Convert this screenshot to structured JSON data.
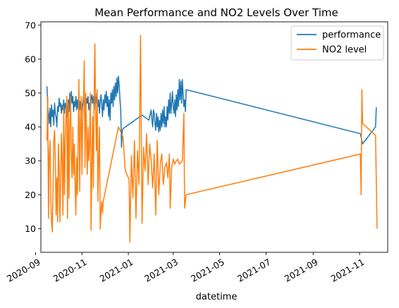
{
  "chart_data": {
    "type": "line",
    "title": "Mean Performance and NO2 Levels Over Time",
    "xlabel": "datetime",
    "ylabel": "",
    "x_type": "date",
    "xlim": [
      "2020-09-08",
      "2021-12-08"
    ],
    "ylim": [
      3,
      71
    ],
    "y_ticks": [
      10,
      20,
      30,
      40,
      50,
      60,
      70
    ],
    "x_ticks": [
      "2020-09-01",
      "2020-11-01",
      "2021-01-01",
      "2021-03-01",
      "2021-05-01",
      "2021-07-01",
      "2021-09-01",
      "2021-11-01"
    ],
    "x_tick_labels": [
      "2020-09",
      "2020-11",
      "2021-01",
      "2021-03",
      "2021-05",
      "2021-07",
      "2021-09",
      "2021-11"
    ],
    "grid": false,
    "legend_position": "top-right",
    "series": [
      {
        "name": "performance",
        "color": "#1f77b4",
        "points": [
          [
            "2020-09-16",
            52.0
          ],
          [
            "2020-09-17",
            46.0
          ],
          [
            "2020-09-18",
            44.0
          ],
          [
            "2020-09-19",
            41.0
          ],
          [
            "2020-09-20",
            45.5
          ],
          [
            "2020-09-21",
            40.0
          ],
          [
            "2020-09-22",
            46.5
          ],
          [
            "2020-09-23",
            43.0
          ],
          [
            "2020-09-24",
            45.0
          ],
          [
            "2020-09-25",
            40.5
          ],
          [
            "2020-09-26",
            47.0
          ],
          [
            "2020-09-27",
            44.0
          ],
          [
            "2020-09-28",
            43.0
          ],
          [
            "2020-09-29",
            40.0
          ],
          [
            "2020-09-30",
            46.0
          ],
          [
            "2020-10-01",
            44.5
          ],
          [
            "2020-10-02",
            48.5
          ],
          [
            "2020-10-03",
            46.0
          ],
          [
            "2020-10-04",
            47.0
          ],
          [
            "2020-10-05",
            44.0
          ],
          [
            "2020-10-06",
            46.5
          ],
          [
            "2020-10-07",
            45.0
          ],
          [
            "2020-10-08",
            48.0
          ],
          [
            "2020-10-09",
            44.0
          ],
          [
            "2020-10-10",
            47.0
          ],
          [
            "2020-10-11",
            45.5
          ],
          [
            "2020-10-12",
            47.0
          ],
          [
            "2020-10-13",
            43.0
          ],
          [
            "2020-10-14",
            48.0
          ],
          [
            "2020-10-15",
            44.5
          ],
          [
            "2020-10-16",
            50.0
          ],
          [
            "2020-10-17",
            46.0
          ],
          [
            "2020-10-18",
            50.5
          ],
          [
            "2020-10-19",
            47.0
          ],
          [
            "2020-10-20",
            49.0
          ],
          [
            "2020-10-21",
            44.5
          ],
          [
            "2020-10-22",
            47.5
          ],
          [
            "2020-10-23",
            46.0
          ],
          [
            "2020-10-24",
            49.0
          ],
          [
            "2020-10-25",
            45.0
          ],
          [
            "2020-10-26",
            48.0
          ],
          [
            "2020-10-27",
            45.5
          ],
          [
            "2020-10-28",
            49.5
          ],
          [
            "2020-10-29",
            45.0
          ],
          [
            "2020-10-30",
            47.5
          ],
          [
            "2020-10-31",
            43.0
          ],
          [
            "2020-11-01",
            46.0
          ],
          [
            "2020-11-02",
            47.0
          ],
          [
            "2020-11-03",
            49.0
          ],
          [
            "2020-11-04",
            46.5
          ],
          [
            "2020-11-05",
            48.0
          ],
          [
            "2020-11-06",
            45.0
          ],
          [
            "2020-11-07",
            48.5
          ],
          [
            "2020-11-08",
            47.0
          ],
          [
            "2020-11-09",
            49.0
          ],
          [
            "2020-11-10",
            45.0
          ],
          [
            "2020-11-11",
            47.0
          ],
          [
            "2020-11-12",
            44.5
          ],
          [
            "2020-11-13",
            48.0
          ],
          [
            "2020-11-14",
            49.5
          ],
          [
            "2020-11-15",
            47.0
          ],
          [
            "2020-11-16",
            49.0
          ],
          [
            "2020-11-17",
            45.0
          ],
          [
            "2020-11-18",
            48.5
          ],
          [
            "2020-11-19",
            50.0
          ],
          [
            "2020-11-20",
            47.0
          ],
          [
            "2020-11-21",
            49.0
          ],
          [
            "2020-11-22",
            46.0
          ],
          [
            "2020-11-23",
            48.0
          ],
          [
            "2020-11-24",
            44.0
          ],
          [
            "2020-11-25",
            47.5
          ],
          [
            "2020-11-26",
            49.5
          ],
          [
            "2020-11-27",
            46.5
          ],
          [
            "2020-11-28",
            43.0
          ],
          [
            "2020-11-29",
            48.0
          ],
          [
            "2020-11-30",
            45.0
          ],
          [
            "2020-12-01",
            49.5
          ],
          [
            "2020-12-02",
            47.0
          ],
          [
            "2020-12-03",
            50.5
          ],
          [
            "2020-12-04",
            46.0
          ],
          [
            "2020-12-05",
            49.0
          ],
          [
            "2020-12-06",
            43.0
          ],
          [
            "2020-12-07",
            48.0
          ],
          [
            "2020-12-08",
            42.0
          ],
          [
            "2020-12-09",
            50.0
          ],
          [
            "2020-12-10",
            47.0
          ],
          [
            "2020-12-11",
            51.0
          ],
          [
            "2020-12-12",
            46.0
          ],
          [
            "2020-12-13",
            52.0
          ],
          [
            "2020-12-14",
            48.0
          ],
          [
            "2020-12-15",
            53.0
          ],
          [
            "2020-12-16",
            49.0
          ],
          [
            "2020-12-17",
            54.5
          ],
          [
            "2020-12-18",
            50.0
          ],
          [
            "2020-12-19",
            55.0
          ],
          [
            "2020-12-20",
            52.0
          ],
          [
            "2020-12-21",
            48.0
          ],
          [
            "2020-12-22",
            45.0
          ],
          [
            "2020-12-23",
            34.0
          ],
          [
            "2020-12-24",
            39.0
          ],
          [
            "2020-12-25",
            39.5
          ],
          [
            "2021-01-19",
            43.5
          ],
          [
            "2021-01-28",
            42.0
          ],
          [
            "2021-01-31",
            45.0
          ],
          [
            "2021-02-01",
            42.0
          ],
          [
            "2021-02-02",
            40.0
          ],
          [
            "2021-02-03",
            45.0
          ],
          [
            "2021-02-04",
            44.0
          ],
          [
            "2021-02-05",
            41.0
          ],
          [
            "2021-02-06",
            39.0
          ],
          [
            "2021-02-07",
            44.0
          ],
          [
            "2021-02-08",
            40.0
          ],
          [
            "2021-02-09",
            43.0
          ],
          [
            "2021-02-10",
            38.5
          ],
          [
            "2021-02-11",
            42.0
          ],
          [
            "2021-02-12",
            39.0
          ],
          [
            "2021-02-13",
            44.0
          ],
          [
            "2021-02-14",
            40.0
          ],
          [
            "2021-02-15",
            45.0
          ],
          [
            "2021-02-16",
            41.0
          ],
          [
            "2021-02-17",
            46.0
          ],
          [
            "2021-02-18",
            40.0
          ],
          [
            "2021-02-19",
            43.0
          ],
          [
            "2021-02-20",
            40.0
          ],
          [
            "2021-02-21",
            46.0
          ],
          [
            "2021-02-22",
            42.0
          ],
          [
            "2021-02-23",
            48.0
          ],
          [
            "2021-02-24",
            44.0
          ],
          [
            "2021-02-25",
            50.0
          ],
          [
            "2021-02-26",
            44.0
          ],
          [
            "2021-02-27",
            47.0
          ],
          [
            "2021-02-28",
            50.5
          ],
          [
            "2021-03-01",
            46.0
          ],
          [
            "2021-03-02",
            44.0
          ],
          [
            "2021-03-03",
            48.0
          ],
          [
            "2021-03-04",
            43.0
          ],
          [
            "2021-03-05",
            49.5
          ],
          [
            "2021-03-06",
            45.0
          ],
          [
            "2021-03-07",
            51.0
          ],
          [
            "2021-03-08",
            46.0
          ],
          [
            "2021-03-09",
            54.0
          ],
          [
            "2021-03-10",
            48.0
          ],
          [
            "2021-03-11",
            53.5
          ],
          [
            "2021-03-12",
            47.0
          ],
          [
            "2021-03-13",
            54.0
          ],
          [
            "2021-03-14",
            49.5
          ],
          [
            "2021-03-15",
            46.0
          ],
          [
            "2021-03-16",
            48.0
          ],
          [
            "2021-03-17",
            44.5
          ],
          [
            "2021-03-18",
            51.0
          ],
          [
            "2021-11-02",
            38.0
          ],
          [
            "2021-11-05",
            35.0
          ],
          [
            "2021-11-22",
            40.0
          ],
          [
            "2021-11-23",
            45.8
          ]
        ]
      },
      {
        "name": "NO2 level",
        "color": "#ff7f0e",
        "points": [
          [
            "2020-09-16",
            36.0
          ],
          [
            "2020-09-17",
            49.0
          ],
          [
            "2020-09-18",
            13.0
          ],
          [
            "2020-09-19",
            32.0
          ],
          [
            "2020-09-20",
            36.0
          ],
          [
            "2020-09-21",
            19.0
          ],
          [
            "2020-09-22",
            12.0
          ],
          [
            "2020-09-23",
            9.0
          ],
          [
            "2020-09-24",
            22.0
          ],
          [
            "2020-09-25",
            36.0
          ],
          [
            "2020-09-26",
            39.0
          ],
          [
            "2020-09-27",
            30.0
          ],
          [
            "2020-09-28",
            14.0
          ],
          [
            "2020-09-29",
            25.0
          ],
          [
            "2020-09-30",
            12.0
          ],
          [
            "2020-10-01",
            35.0
          ],
          [
            "2020-10-02",
            28.0
          ],
          [
            "2020-10-03",
            12.0
          ],
          [
            "2020-10-04",
            24.0
          ],
          [
            "2020-10-05",
            38.0
          ],
          [
            "2020-10-06",
            30.0
          ],
          [
            "2020-10-07",
            14.0
          ],
          [
            "2020-10-08",
            46.0
          ],
          [
            "2020-10-09",
            20.0
          ],
          [
            "2020-10-10",
            36.0
          ],
          [
            "2020-10-11",
            44.0
          ],
          [
            "2020-10-12",
            49.0
          ],
          [
            "2020-10-13",
            13.0
          ],
          [
            "2020-10-14",
            47.0
          ],
          [
            "2020-10-15",
            19.0
          ],
          [
            "2020-10-16",
            40.0
          ],
          [
            "2020-10-17",
            49.0
          ],
          [
            "2020-10-18",
            31.0
          ],
          [
            "2020-10-19",
            25.0
          ],
          [
            "2020-10-20",
            40.0
          ],
          [
            "2020-10-21",
            26.0
          ],
          [
            "2020-10-22",
            35.0
          ],
          [
            "2020-10-23",
            23.0
          ],
          [
            "2020-10-24",
            14.0
          ],
          [
            "2020-10-25",
            31.0
          ],
          [
            "2020-10-26",
            20.0
          ],
          [
            "2020-10-27",
            37.0
          ],
          [
            "2020-10-28",
            54.0
          ],
          [
            "2020-10-29",
            21.0
          ],
          [
            "2020-10-30",
            40.0
          ],
          [
            "2020-10-31",
            49.0
          ],
          [
            "2020-11-01",
            26.0
          ],
          [
            "2020-11-02",
            42.0
          ],
          [
            "2020-11-03",
            48.0
          ],
          [
            "2020-11-04",
            59.5
          ],
          [
            "2020-11-05",
            28.0
          ],
          [
            "2020-11-06",
            50.0
          ],
          [
            "2020-11-07",
            38.0
          ],
          [
            "2020-11-08",
            26.0
          ],
          [
            "2020-11-09",
            40.0
          ],
          [
            "2020-11-10",
            30.0
          ],
          [
            "2020-11-11",
            35.0
          ],
          [
            "2020-11-12",
            50.0
          ],
          [
            "2020-11-13",
            9.5
          ],
          [
            "2020-11-14",
            28.0
          ],
          [
            "2020-11-15",
            43.0
          ],
          [
            "2020-11-16",
            22.0
          ],
          [
            "2020-11-17",
            50.0
          ],
          [
            "2020-11-18",
            64.5
          ],
          [
            "2020-11-19",
            44.0
          ],
          [
            "2020-11-20",
            33.0
          ],
          [
            "2020-11-21",
            51.0
          ],
          [
            "2020-11-22",
            18.0
          ],
          [
            "2020-11-23",
            30.0
          ],
          [
            "2020-11-24",
            40.0
          ],
          [
            "2020-11-25",
            9.8
          ],
          [
            "2020-11-26",
            15.0
          ],
          [
            "2020-11-27",
            18.0
          ],
          [
            "2020-11-28",
            14.5
          ],
          [
            "2020-11-29",
            18.0
          ],
          [
            "2020-12-19",
            40.0
          ],
          [
            "2020-12-25",
            37.0
          ],
          [
            "2020-12-28",
            27.0
          ],
          [
            "2021-01-02",
            24.5
          ],
          [
            "2021-01-03",
            6.0
          ],
          [
            "2021-01-05",
            31.5
          ],
          [
            "2021-01-07",
            19.0
          ],
          [
            "2021-01-09",
            36.0
          ],
          [
            "2021-01-11",
            13.0
          ],
          [
            "2021-01-13",
            33.0
          ],
          [
            "2021-01-15",
            23.0
          ],
          [
            "2021-01-17",
            67.0
          ],
          [
            "2021-01-19",
            11.5
          ],
          [
            "2021-01-21",
            34.0
          ],
          [
            "2021-01-23",
            27.0
          ],
          [
            "2021-01-25",
            38.0
          ],
          [
            "2021-01-27",
            23.0
          ],
          [
            "2021-01-29",
            35.0
          ],
          [
            "2021-01-31",
            30.0
          ],
          [
            "2021-02-02",
            22.0
          ],
          [
            "2021-02-04",
            32.0
          ],
          [
            "2021-02-06",
            14.0
          ],
          [
            "2021-02-08",
            36.0
          ],
          [
            "2021-02-10",
            20.0
          ],
          [
            "2021-02-12",
            29.0
          ],
          [
            "2021-02-14",
            32.0
          ],
          [
            "2021-02-16",
            23.0
          ],
          [
            "2021-02-18",
            28.0
          ],
          [
            "2021-02-20",
            29.5
          ],
          [
            "2021-02-22",
            25.0
          ],
          [
            "2021-02-24",
            32.0
          ],
          [
            "2021-02-25",
            16.0
          ],
          [
            "2021-02-27",
            28.0
          ],
          [
            "2021-03-01",
            30.5
          ],
          [
            "2021-03-03",
            29.0
          ],
          [
            "2021-03-05",
            30.0
          ],
          [
            "2021-03-07",
            30.5
          ],
          [
            "2021-03-09",
            29.0
          ],
          [
            "2021-03-11",
            29.5
          ],
          [
            "2021-03-13",
            30.0
          ],
          [
            "2021-03-15",
            44.0
          ],
          [
            "2021-03-16",
            16.0
          ],
          [
            "2021-03-18",
            20.0
          ],
          [
            "2021-11-02",
            32.0
          ],
          [
            "2021-11-03",
            20.0
          ],
          [
            "2021-11-04",
            51.0
          ],
          [
            "2021-11-05",
            41.0
          ],
          [
            "2021-11-22",
            37.5
          ],
          [
            "2021-11-24",
            10.0
          ]
        ]
      }
    ]
  }
}
